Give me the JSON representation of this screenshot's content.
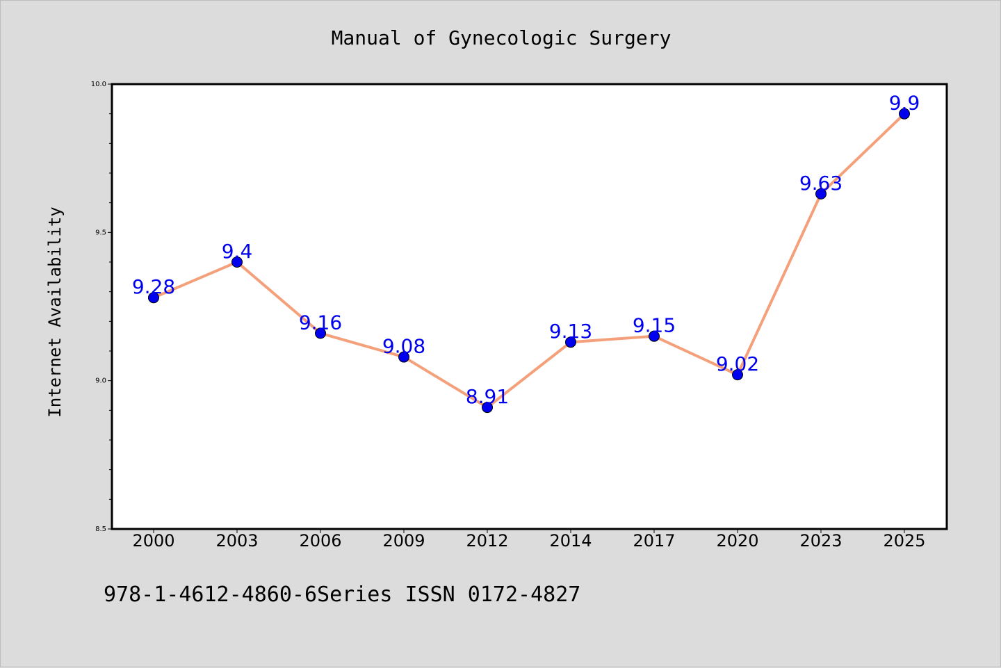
{
  "chart_data": {
    "type": "line",
    "title": "Manual of Gynecologic Surgery",
    "xlabel": "",
    "ylabel": "Internet Availability",
    "footer": "978-1-4612-4860-6Series ISSN 0172-4827",
    "categories": [
      "2000",
      "2003",
      "2006",
      "2009",
      "2012",
      "2014",
      "2017",
      "2020",
      "2023",
      "2025"
    ],
    "series": [
      {
        "values": [
          9.28,
          9.4,
          9.16,
          9.08,
          8.91,
          9.13,
          9.15,
          9.02,
          9.63,
          9.9
        ],
        "data_labels": [
          "9.28",
          "9.4",
          "9.16",
          "9.08",
          "8.91",
          "9.13",
          "9.15",
          "9.02",
          "9.63",
          "9.9"
        ]
      }
    ],
    "ylim": [
      8.5,
      10.0
    ],
    "yticks": [
      "8.5",
      "9.0",
      "9.5",
      "10.0"
    ],
    "grid": false,
    "colors": {
      "line": "#f4a07a",
      "marker": "#0000ee",
      "data_label": "#0000ee",
      "background": "#dcdcdc",
      "plot_background": "#ffffff"
    }
  }
}
